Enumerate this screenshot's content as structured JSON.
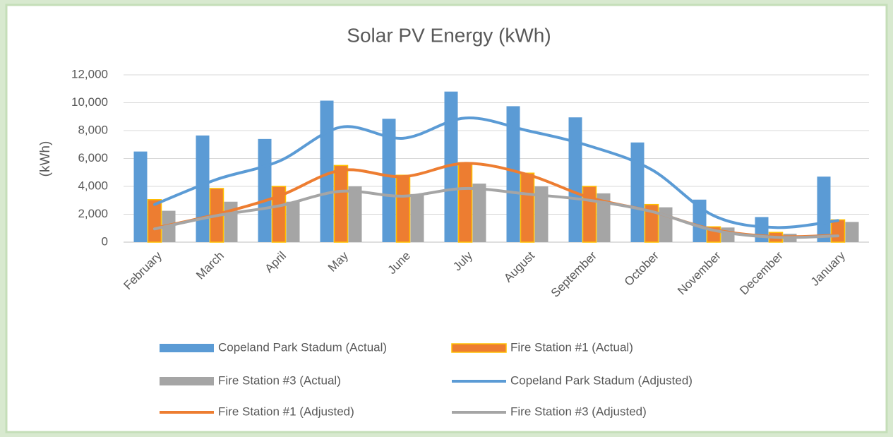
{
  "chart_data": {
    "type": "bar",
    "title": "Solar PV Energy (kWh)",
    "ylabel": "(kWh)",
    "categories": [
      "February",
      "March",
      "April",
      "May",
      "June",
      "July",
      "August",
      "September",
      "October",
      "November",
      "December",
      "January"
    ],
    "ylim": [
      0,
      12000
    ],
    "yticks": [
      0,
      {
        "value": 2000,
        "label": "2,000"
      },
      {
        "value": 4000,
        "label": "4,000"
      },
      {
        "value": 6000,
        "label": "6,000"
      },
      {
        "value": 8000,
        "label": "8,000"
      },
      {
        "value": 10000,
        "label": "10,000"
      },
      {
        "value": 12000,
        "label": "12,000"
      }
    ],
    "grid": true,
    "legend": "bottom",
    "series": [
      {
        "name": "Copeland Park Stadum (Actual)",
        "type": "bar",
        "color": "#5b9bd5",
        "values": [
          6500,
          7650,
          7400,
          10150,
          8850,
          10800,
          9750,
          8950,
          7150,
          3050,
          1800,
          4700
        ]
      },
      {
        "name": "Fire Station #1 (Actual)",
        "type": "bar",
        "color": "#ed7d31",
        "stroke": "#ffc000",
        "values": [
          3050,
          3850,
          4000,
          5500,
          4800,
          5700,
          4950,
          4000,
          2700,
          1100,
          700,
          1600
        ]
      },
      {
        "name": "Fire Station #3 (Actual)",
        "type": "bar",
        "color": "#a5a5a5",
        "values": [
          2250,
          2900,
          2900,
          4000,
          3450,
          4200,
          4000,
          3500,
          2500,
          1050,
          600,
          1450
        ]
      },
      {
        "name": "Copeland Park Stadum (Adjusted)",
        "type": "line",
        "color": "#5b9bd5",
        "values": [
          2700,
          4500,
          5800,
          8250,
          7450,
          8900,
          8000,
          6900,
          5200,
          1900,
          1050,
          1550
        ]
      },
      {
        "name": "Fire Station #1 (Adjusted)",
        "type": "line",
        "color": "#ed7d31",
        "values": [
          1000,
          2000,
          3300,
          5150,
          4700,
          5650,
          4850,
          3200,
          2200,
          900,
          400,
          500
        ]
      },
      {
        "name": "Fire Station #3 (Adjusted)",
        "type": "line",
        "color": "#a5a5a5",
        "values": [
          950,
          1900,
          2600,
          3650,
          3300,
          3850,
          3450,
          3000,
          2200,
          850,
          350,
          450
        ]
      }
    ]
  }
}
